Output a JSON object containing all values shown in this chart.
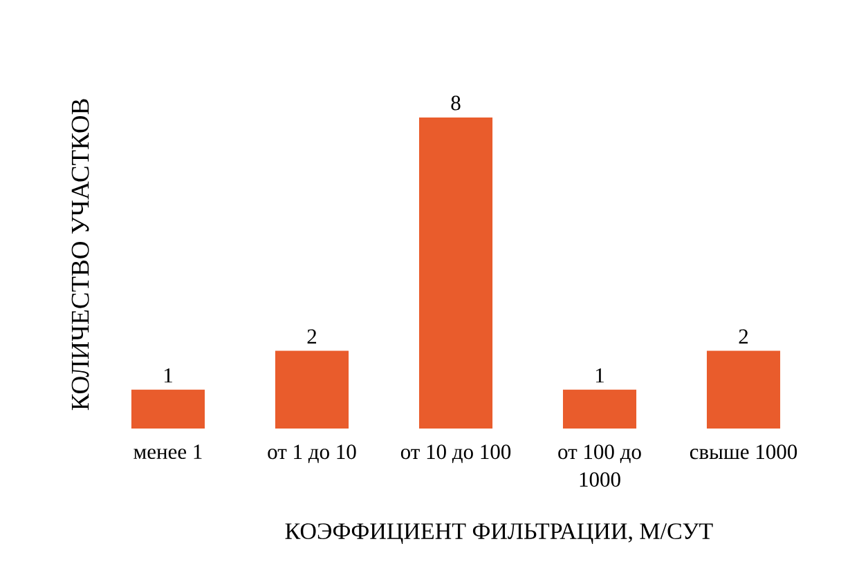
{
  "chart_data": {
    "type": "bar",
    "xlabel": "КОЭФФИЦИЕНТ ФИЛЬТРАЦИИ, М/СУТ",
    "ylabel": "КОЛИЧЕСТВО УЧАСТКОВ",
    "categories": [
      "менее 1",
      "от 1 до 10",
      "от 10 до 100",
      "от 100 до 1000",
      "свыше 1000"
    ],
    "values": [
      1,
      2,
      8,
      1,
      2
    ],
    "color": "#e95c2c",
    "data_labels": true,
    "tick_labels": "x"
  }
}
